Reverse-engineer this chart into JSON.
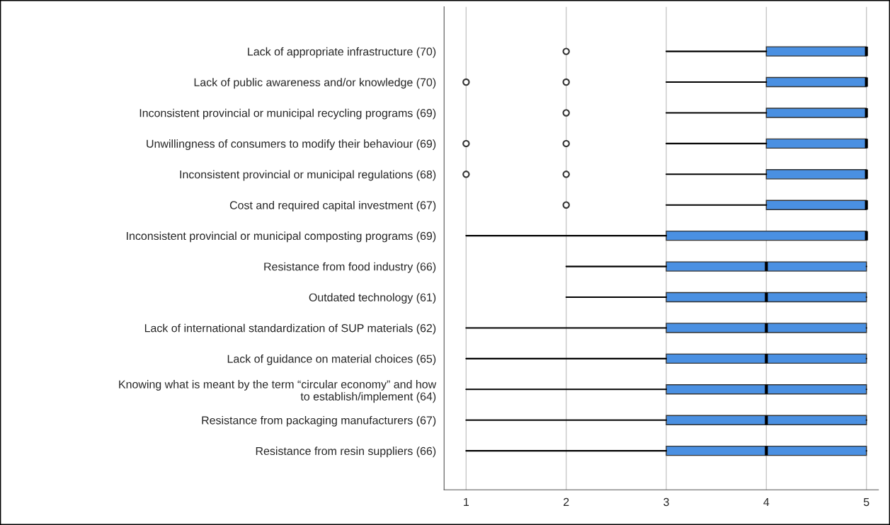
{
  "chart_data": {
    "type": "box",
    "orientation": "horizontal",
    "color": "#4a90e2",
    "grid": "x",
    "xlim": [
      0.78,
      5.12
    ],
    "xticks": [
      1,
      2,
      3,
      4,
      5
    ],
    "categories": [
      "Lack of appropriate infrastructure (70)",
      "Lack of public awareness and/or knowledge (70)",
      "Inconsistent provincial or municipal recycling programs (69)",
      "Unwillingness of consumers to modify their behaviour (69)",
      "Inconsistent provincial or municipal regulations (68)",
      "Cost and required capital investment (67)",
      "Inconsistent provincial or municipal composting programs (69)",
      "Resistance from food industry (66)",
      "Outdated technology (61)",
      "Lack of international standardization of SUP materials (62)",
      "Lack of guidance on material choices (65)",
      "Knowing what is meant by the term “circular economy” and how\nto establish/implement (64)",
      "Resistance from packaging manufacturers (67)",
      "Resistance from resin suppliers (66)"
    ],
    "boxes": [
      {
        "low": 3,
        "q1": 4,
        "median": 5,
        "q3": 5,
        "high": 5,
        "outliers": [
          2
        ]
      },
      {
        "low": 3,
        "q1": 4,
        "median": 5,
        "q3": 5,
        "high": 5,
        "outliers": [
          1,
          2
        ]
      },
      {
        "low": 3,
        "q1": 4,
        "median": 5,
        "q3": 5,
        "high": 5,
        "outliers": [
          2
        ]
      },
      {
        "low": 3,
        "q1": 4,
        "median": 5,
        "q3": 5,
        "high": 5,
        "outliers": [
          1,
          2
        ]
      },
      {
        "low": 3,
        "q1": 4,
        "median": 5,
        "q3": 5,
        "high": 5,
        "outliers": [
          1,
          2
        ]
      },
      {
        "low": 3,
        "q1": 4,
        "median": 5,
        "q3": 5,
        "high": 5,
        "outliers": [
          2
        ]
      },
      {
        "low": 1,
        "q1": 3,
        "median": 5,
        "q3": 5,
        "high": 5
      },
      {
        "low": 2,
        "q1": 3,
        "median": 4,
        "q3": 5,
        "high": 5
      },
      {
        "low": 2,
        "q1": 3,
        "median": 4,
        "q3": 5,
        "high": 5
      },
      {
        "low": 1,
        "q1": 3,
        "median": 4,
        "q3": 5,
        "high": 5
      },
      {
        "low": 1,
        "q1": 3,
        "median": 4,
        "q3": 5,
        "high": 5
      },
      {
        "low": 1,
        "q1": 3,
        "median": 4,
        "q3": 5,
        "high": 5
      },
      {
        "low": 1,
        "q1": 3,
        "median": 4,
        "q3": 5,
        "high": 5
      },
      {
        "low": 1,
        "q1": 3,
        "median": 4,
        "q3": 5,
        "high": 5
      }
    ]
  }
}
